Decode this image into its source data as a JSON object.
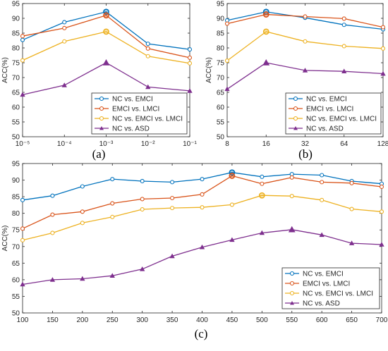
{
  "colors": {
    "NC vs. EMCI": "#0072BD",
    "EMCI vs. LMCI": "#D95319",
    "NC vs. EMCI vs. LMCI": "#EDB120",
    "NC vs. ASD": "#7E2F8E"
  },
  "chart_data": [
    {
      "type": "line",
      "panel": "a",
      "caption": "(a)",
      "xscale": "log",
      "x": [
        1e-05,
        0.0001,
        0.001,
        0.01,
        0.1
      ],
      "xticklabels": [
        "10⁻⁵",
        "10⁻⁴",
        "10⁻³",
        "10⁻²",
        "10⁻¹"
      ],
      "ylabel": "ACC(%)",
      "ylim": [
        50,
        95
      ],
      "yticks": [
        50,
        55,
        60,
        65,
        70,
        75,
        80,
        85,
        90,
        95
      ],
      "legend": "bottom-right",
      "grid": false,
      "peak_index": 2,
      "series": [
        {
          "name": "NC vs. EMCI",
          "marker": "circle",
          "values": [
            82.7,
            88.7,
            92.2,
            81.4,
            79.5
          ]
        },
        {
          "name": "EMCI vs. LMCI",
          "marker": "circle",
          "values": [
            84.0,
            86.7,
            91.0,
            79.8,
            76.7
          ]
        },
        {
          "name": "NC vs. EMCI vs. LMCI",
          "marker": "circle",
          "values": [
            75.8,
            82.2,
            85.5,
            77.2,
            74.8
          ]
        },
        {
          "name": "NC vs. ASD",
          "marker": "triangle",
          "values": [
            64.2,
            67.4,
            75.0,
            66.8,
            65.5
          ]
        }
      ]
    },
    {
      "type": "line",
      "panel": "b",
      "caption": "(b)",
      "xscale": "log2",
      "x": [
        8,
        16,
        32,
        64,
        128
      ],
      "xticklabels": [
        "8",
        "16",
        "32",
        "64",
        "128"
      ],
      "ylabel": "ACC(%)",
      "ylim": [
        50,
        95
      ],
      "yticks": [
        50,
        55,
        60,
        65,
        70,
        75,
        80,
        85,
        90,
        95
      ],
      "legend": "bottom-right",
      "grid": false,
      "peak_index": 1,
      "series": [
        {
          "name": "NC vs. EMCI",
          "marker": "circle",
          "values": [
            89.3,
            92.2,
            90.2,
            87.8,
            86.3
          ]
        },
        {
          "name": "EMCI vs. LMCI",
          "marker": "circle",
          "values": [
            88.2,
            91.3,
            90.6,
            89.9,
            87.0
          ]
        },
        {
          "name": "NC vs. EMCI vs. LMCI",
          "marker": "circle",
          "values": [
            75.7,
            85.5,
            82.2,
            80.6,
            79.8
          ]
        },
        {
          "name": "NC vs. ASD",
          "marker": "triangle",
          "values": [
            66.1,
            75.0,
            72.4,
            72.1,
            71.3
          ]
        }
      ]
    },
    {
      "type": "line",
      "panel": "c",
      "caption": "(c)",
      "xscale": "linear",
      "x": [
        100,
        150,
        200,
        250,
        300,
        350,
        400,
        450,
        500,
        550,
        600,
        650,
        700
      ],
      "xticklabels": [
        "100",
        "150",
        "200",
        "250",
        "300",
        "350",
        "400",
        "450",
        "500",
        "550",
        "600",
        "650",
        "700"
      ],
      "xlim": [
        100,
        700
      ],
      "ylabel": "ACC(%)",
      "ylim": [
        50,
        95
      ],
      "yticks": [
        50,
        55,
        60,
        65,
        70,
        75,
        80,
        85,
        90,
        95
      ],
      "legend": "bottom-right",
      "grid": false,
      "series": [
        {
          "name": "NC vs. EMCI",
          "marker": "circle",
          "peak_index": 7,
          "values": [
            84.0,
            85.3,
            88.1,
            90.3,
            89.7,
            89.4,
            90.3,
            92.3,
            91.0,
            91.8,
            91.5,
            89.7,
            88.9
          ]
        },
        {
          "name": "EMCI vs. LMCI",
          "marker": "circle",
          "peak_index": 7,
          "values": [
            75.4,
            79.6,
            80.5,
            83.0,
            84.3,
            84.6,
            85.7,
            91.3,
            88.9,
            90.8,
            89.4,
            89.1,
            88.0
          ]
        },
        {
          "name": "NC vs. EMCI vs. LMCI",
          "marker": "circle",
          "peak_index": 8,
          "values": [
            71.9,
            74.1,
            77.1,
            78.9,
            81.2,
            81.6,
            81.8,
            82.6,
            85.4,
            85.2,
            84.0,
            81.3,
            80.5
          ]
        },
        {
          "name": "NC vs. ASD",
          "marker": "triangle",
          "peak_index": 9,
          "values": [
            58.6,
            60.0,
            60.3,
            61.2,
            63.2,
            67.1,
            69.8,
            72.0,
            74.1,
            75.1,
            73.5,
            71.0,
            70.6
          ]
        }
      ]
    }
  ]
}
